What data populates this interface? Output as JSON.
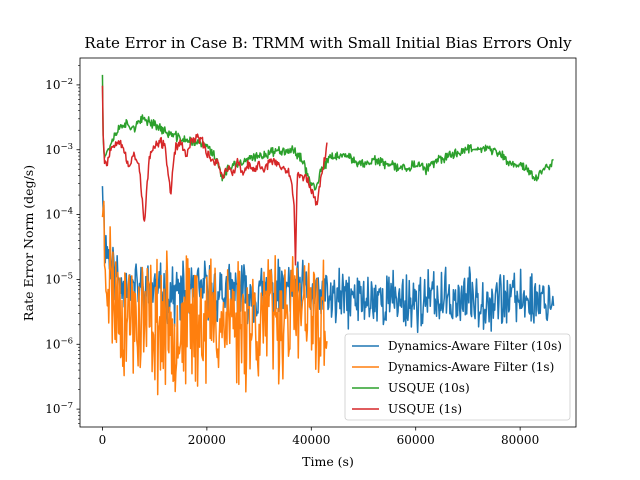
{
  "chart_data": {
    "type": "line",
    "title": "Rate Error in Case B: TRMM with Small Initial Bias Errors Only",
    "xlabel": "Time (s)",
    "ylabel": "Rate Error Norm (deg/s)",
    "x_scale": "linear",
    "y_scale": "log",
    "xlim": [
      -4300,
      90700
    ],
    "ylim": [
      5.3e-08,
      0.026
    ],
    "x_ticks": [
      0,
      20000,
      40000,
      60000,
      80000
    ],
    "x_tick_labels": [
      "0",
      "20000",
      "40000",
      "60000",
      "80000"
    ],
    "y_ticks": [
      1e-07,
      1e-06,
      1e-05,
      0.0001,
      0.001,
      0.01
    ],
    "y_tick_labels": [
      "10−7",
      "10−6",
      "10−5",
      "10−4",
      "10−3",
      "10−2"
    ],
    "grid": false,
    "legend_position": "lower-right",
    "series": [
      {
        "name": "Dynamics-Aware Filter (10s)",
        "color": "#1f77b4",
        "noise": {
          "amp": 0.7,
          "seed": 11
        },
        "x": [
          0,
          300,
          800,
          1500,
          3000,
          5000,
          8000,
          12000,
          16000,
          20000,
          24000,
          28000,
          32000,
          36000,
          40000,
          44000,
          48000,
          52000,
          56000,
          60000,
          64000,
          68000,
          72000,
          76000,
          80000,
          84000,
          86400
        ],
        "y": [
          0.0005,
          6e-05,
          3e-05,
          2e-05,
          1e-05,
          8e-06,
          7e-06,
          6e-06,
          6e-06,
          7e-06,
          6e-06,
          6e-06,
          6e-06,
          7e-06,
          6e-06,
          5e-06,
          5e-06,
          5e-06,
          5e-06,
          4.5e-06,
          5e-06,
          5e-06,
          5e-06,
          5e-06,
          5e-06,
          5e-06,
          5e-06
        ]
      },
      {
        "name": "Dynamics-Aware Filter (1s)",
        "color": "#ff7f0e",
        "noise": {
          "amp": 1.6,
          "seed": 23
        },
        "x": [
          0,
          200,
          500,
          1000,
          2000,
          4000,
          8000,
          12000,
          16000,
          20000,
          24000,
          28000,
          32000,
          36000,
          40000,
          43000
        ],
        "y": [
          0.0003,
          5e-05,
          2e-05,
          1.5e-05,
          6e-06,
          3e-06,
          2.5e-06,
          2e-06,
          2e-06,
          2.5e-06,
          2.5e-06,
          2.5e-06,
          2.5e-06,
          3e-06,
          2.5e-06,
          2.5e-06
        ]
      },
      {
        "name": "USQUE (10s)",
        "color": "#2ca02c",
        "noise": {
          "amp": 0.12,
          "seed": 37
        },
        "x": [
          0,
          150,
          400,
          800,
          1500,
          2500,
          4000,
          6000,
          8000,
          10000,
          12000,
          14000,
          16000,
          18000,
          20000,
          22000,
          23000,
          24000,
          26000,
          28000,
          30000,
          32000,
          34000,
          36000,
          38000,
          40000,
          41000,
          42000,
          44000,
          46000,
          48000,
          50000,
          52000,
          54000,
          56000,
          58000,
          60000,
          62000,
          64000,
          66000,
          68000,
          70000,
          72000,
          74000,
          76000,
          78000,
          80000,
          82000,
          83000,
          84000,
          86400
        ],
        "y": [
          0.015,
          0.0015,
          0.0008,
          0.0009,
          0.0012,
          0.0018,
          0.0026,
          0.0022,
          0.003,
          0.0025,
          0.0019,
          0.0016,
          0.0014,
          0.0013,
          0.00115,
          0.0007,
          0.00035,
          0.0005,
          0.0006,
          0.0007,
          0.0008,
          0.0009,
          0.001,
          0.001,
          0.0008,
          0.0003,
          0.00025,
          0.0005,
          0.0008,
          0.0008,
          0.0007,
          0.0006,
          0.0007,
          0.0006,
          0.00055,
          0.00052,
          0.0006,
          0.0005,
          0.00065,
          0.0008,
          0.0009,
          0.00105,
          0.0011,
          0.001,
          0.0009,
          0.0006,
          0.0006,
          0.00045,
          0.00035,
          0.00045,
          0.00065
        ]
      },
      {
        "name": "USQUE (1s)",
        "color": "#d62728",
        "noise": {
          "amp": 0.12,
          "seed": 53
        },
        "x": [
          0,
          150,
          400,
          800,
          1500,
          2500,
          3000,
          4000,
          5000,
          6000,
          7000,
          8000,
          9000,
          10000,
          11000,
          12000,
          13000,
          14000,
          15000,
          16000,
          17000,
          18000,
          19000,
          20000,
          21000,
          22000,
          23000,
          24000,
          25000,
          26000,
          27000,
          28000,
          29000,
          30000,
          31000,
          32000,
          33000,
          34000,
          35000,
          36000,
          36700,
          37000,
          37300,
          38000,
          39000,
          40000,
          41000,
          42000,
          43000
        ],
        "y": [
          0.011,
          0.0015,
          0.0007,
          0.0006,
          0.001,
          0.0013,
          0.0015,
          0.0011,
          0.0005,
          0.0009,
          0.0006,
          7e-05,
          0.0008,
          0.0011,
          0.0013,
          0.0012,
          0.0002,
          0.0011,
          0.0013,
          0.0008,
          0.0013,
          0.0016,
          0.0014,
          0.0009,
          0.0007,
          0.00065,
          0.0004,
          0.0005,
          0.00045,
          0.00065,
          0.0004,
          0.0006,
          0.00045,
          0.0006,
          0.0005,
          0.00065,
          0.0007,
          0.00055,
          0.0005,
          0.00045,
          0.00015,
          1.5e-05,
          0.0005,
          0.00035,
          0.0004,
          0.00025,
          0.00015,
          0.0004,
          0.0012
        ]
      }
    ]
  }
}
